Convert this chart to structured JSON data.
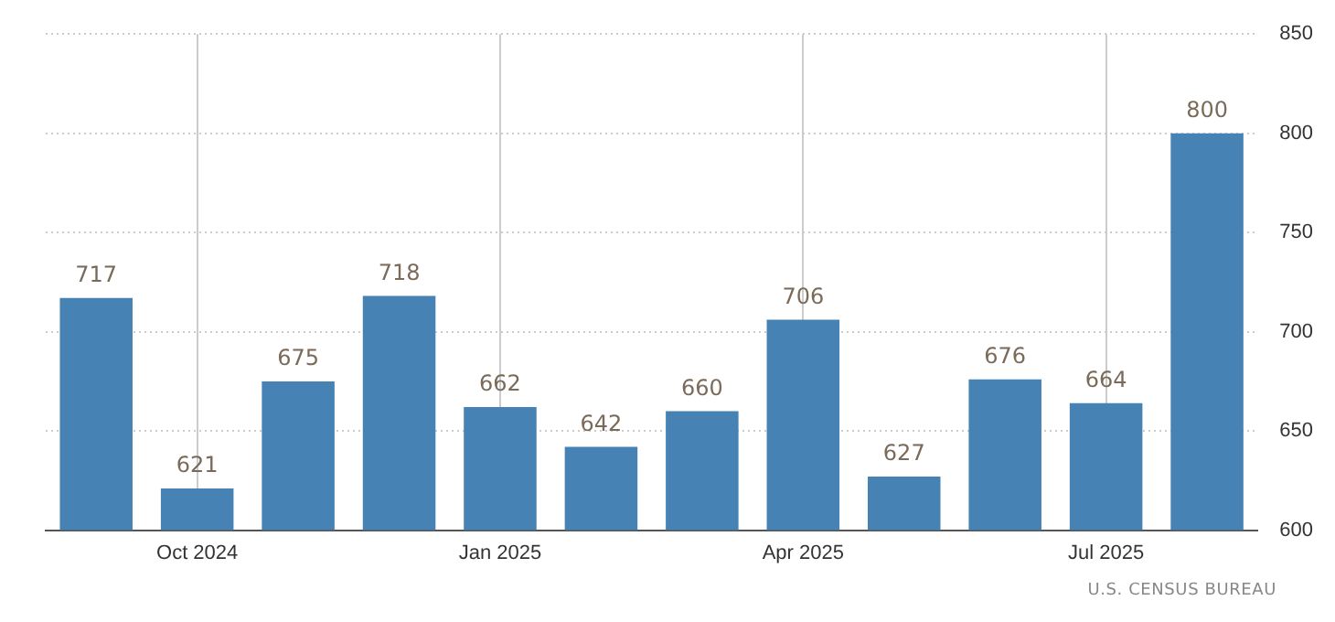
{
  "chart_data": {
    "type": "bar",
    "categories": [
      null,
      "Oct 2024",
      null,
      null,
      "Jan 2025",
      null,
      null,
      "Apr 2025",
      null,
      null,
      "Jul 2025",
      null
    ],
    "values": [
      717,
      621,
      675,
      718,
      662,
      642,
      660,
      706,
      627,
      676,
      664,
      800
    ],
    "color": "#4682b4",
    "ylim": [
      600,
      850
    ],
    "yticks": [
      600,
      650,
      700,
      750,
      800,
      850
    ],
    "grid": true,
    "data_labels": true,
    "legend": false,
    "annotations": [
      "U.S. CENSUS BUREAU"
    ]
  }
}
